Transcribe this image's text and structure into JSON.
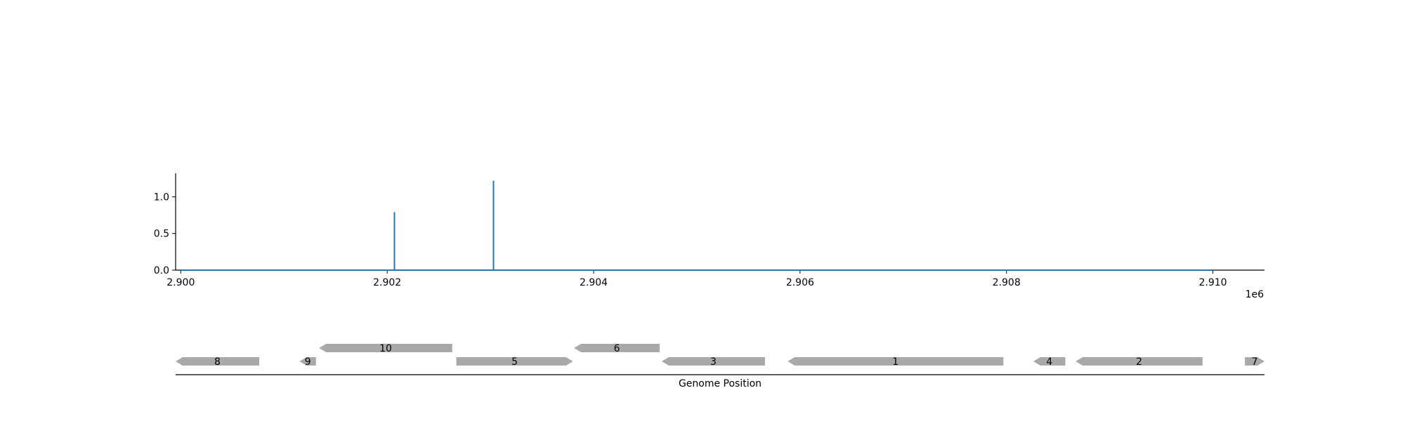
{
  "chart_data": [
    {
      "type": "line",
      "title": "",
      "xlabel": "",
      "ylabel": "",
      "x_offset_label": "1e6",
      "xlim": [
        2.89995,
        2.9105
      ],
      "ylim": [
        0,
        1.32
      ],
      "x_ticks": [
        {
          "value": 2.9,
          "label": "2.900"
        },
        {
          "value": 2.902,
          "label": "2.902"
        },
        {
          "value": 2.904,
          "label": "2.904"
        },
        {
          "value": 2.906,
          "label": "2.906"
        },
        {
          "value": 2.908,
          "label": "2.908"
        },
        {
          "value": 2.91,
          "label": "2.910"
        }
      ],
      "y_ticks": [
        {
          "value": 0.0,
          "label": "0.0"
        },
        {
          "value": 0.5,
          "label": "0.5"
        },
        {
          "value": 1.0,
          "label": "1.0"
        }
      ],
      "series": [
        {
          "color": "#1f77b4",
          "baseline": {
            "x_start": 2.9,
            "x_end": 2.91,
            "y": 0.0
          },
          "peaks": [
            {
              "x": 2.90207,
              "y": 0.79
            },
            {
              "x": 2.90303,
              "y": 1.22
            }
          ]
        }
      ],
      "grid": false
    },
    {
      "type": "gene_track",
      "xlabel": "Genome Position",
      "xlim": [
        2.89995,
        2.9105
      ],
      "feature_color": "#a9a9a9",
      "features": [
        {
          "label": "8",
          "start": 2.89995,
          "end": 2.90076,
          "strand": "-",
          "row": 0
        },
        {
          "label": "9",
          "start": 2.90115,
          "end": 2.90131,
          "strand": "-",
          "row": 0
        },
        {
          "label": "10",
          "start": 2.90134,
          "end": 2.90263,
          "strand": "-",
          "row": 1
        },
        {
          "label": "5",
          "start": 2.90267,
          "end": 2.9038,
          "strand": "+",
          "row": 0
        },
        {
          "label": "6",
          "start": 2.90381,
          "end": 2.90464,
          "strand": "-",
          "row": 1
        },
        {
          "label": "3",
          "start": 2.90466,
          "end": 2.90566,
          "strand": "-",
          "row": 0
        },
        {
          "label": "1",
          "start": 2.90588,
          "end": 2.90797,
          "strand": "-",
          "row": 0
        },
        {
          "label": "4",
          "start": 2.90826,
          "end": 2.90857,
          "strand": "-",
          "row": 0
        },
        {
          "label": "2",
          "start": 2.90867,
          "end": 2.9099,
          "strand": "-",
          "row": 0
        },
        {
          "label": "7",
          "start": 2.91031,
          "end": 2.9105,
          "strand": "+",
          "row": 0
        }
      ]
    }
  ]
}
